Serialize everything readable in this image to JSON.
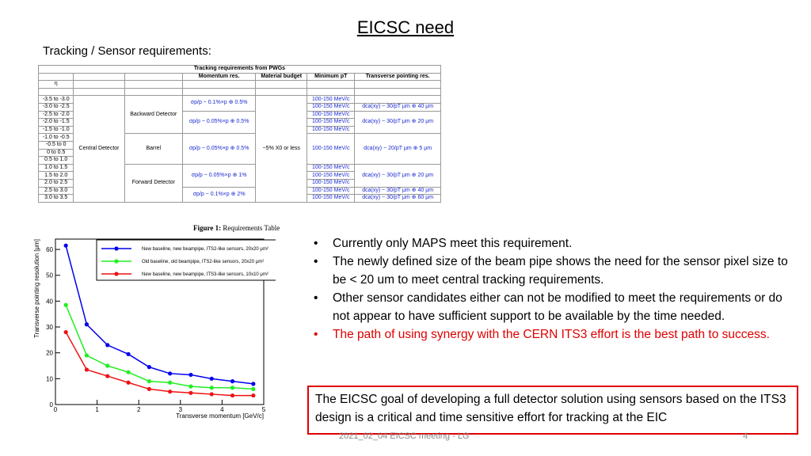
{
  "header": {
    "title": "EICSC need",
    "subtitle": "Tracking / Sensor requirements:"
  },
  "table": {
    "title": "Tracking requirements from PWGs",
    "headers": [
      "Momentum res.",
      "Material budget",
      "Minimum pT",
      "Transverse pointing res."
    ],
    "eta_label": "η",
    "eta": [
      "-3.5 to -3.0",
      "-3.0 to -2.5",
      "-2.5 to -2.0",
      "-2.0 to -1.5",
      "-1.5 to -1.0",
      "-1.0 to -0.5",
      "-0.5 to 0",
      "0 to 0.5",
      "0.5 to 1.0",
      "1.0 to 1.5",
      "1.5 to 2.0",
      "2.0 to 2.5",
      "2.5 to 3.0",
      "3.0 to 3.5"
    ],
    "region": "Central Detector",
    "detectors": [
      "Backward Detector",
      "Barrel",
      "Forward Detector"
    ],
    "momentum_res": [
      "σp/p ~ 0.1%×p ⊕ 0.5%",
      "σp/p ~ 0.05%×p ⊕ 0.5%",
      "σp/p ~ 0.05%×p ⊕ 0.5%",
      "σp/p ~ 0.05%×p ⊕ 1%",
      "σp/p ~ 0.1%×p ⊕ 2%"
    ],
    "material_budget": "~5% X0 or less",
    "min_pt": [
      "100-150 MeV/c",
      "100-150 MeV/c",
      "100-150 MeV/c",
      "100-150 MeV/c",
      "100-150 MeV/c",
      "100-150 MeV/c",
      "100-150 MeV/c",
      "100-150 MeV/c",
      "100-150 MeV/c",
      "100-150 MeV/c",
      "100-150 MeV/c"
    ],
    "pointing_res": [
      "dca(xy) ~ 30/pT μm ⊕ 40 μm",
      "dca(xy) ~ 30/pT μm ⊕ 20 μm",
      "dca(xy) ~ 20/pT μm ⊕ 5 μm",
      "dca(xy) ~ 30/pT μm ⊕ 20 μm",
      "dca(xy) ~ 30/pT μm ⊕ 40 μm",
      "dca(xy) ~ 30/pT μm ⊕ 60 μm"
    ]
  },
  "caption": {
    "label": "Figure 1:",
    "text": "Requirements Table"
  },
  "chart_data": {
    "type": "line",
    "x_label": "Transverse momentum [GeV/c]",
    "y_label": "Transverse pointing resolution [μm]",
    "x": [
      0.25,
      0.75,
      1.25,
      1.75,
      2.25,
      2.75,
      3.25,
      3.75,
      4.25,
      4.75
    ],
    "series": [
      {
        "name": "New baseline, new beampipe, ITS2-like sensors, 20x20 μm²",
        "color": "#0000ee",
        "values": [
          61.5,
          31,
          23,
          19.5,
          14.5,
          12,
          11.5,
          10,
          9,
          8
        ]
      },
      {
        "name": "Old baseline, old beampipe, ITS2-like sensors, 20x20 μm²",
        "color": "#22ee22",
        "values": [
          38.5,
          19,
          15,
          12.5,
          9,
          8.5,
          7,
          6.5,
          6.5,
          6
        ]
      },
      {
        "name": "New baseline, new beampipe, ITS3-like sensors, 10x10 μm²",
        "color": "#ee1111",
        "values": [
          28,
          13.5,
          11,
          8.5,
          6,
          5,
          4.5,
          4,
          3.5,
          3.5
        ]
      }
    ],
    "xlim": [
      0,
      5
    ],
    "ylim": [
      0,
      64
    ],
    "xticks": [
      0,
      1,
      2,
      3,
      4,
      5
    ],
    "yticks": [
      0,
      10,
      20,
      30,
      40,
      50,
      60
    ],
    "grid": false,
    "legend": "top-right"
  },
  "bullets": [
    {
      "text": "Currently only MAPS meet this requirement.",
      "color": "#000000"
    },
    {
      "text": "The newly defined size of the beam pipe shows the need for the sensor pixel size to be < 20 um to meet central tracking requirements.",
      "color": "#000000"
    },
    {
      "text": "Other sensor candidates either can not be modified to meet the requirements or do not appear to have sufficient support to be available by the time needed.",
      "color": "#000000"
    },
    {
      "text": "The path of using synergy with the CERN ITS3 effort is the best path to success.",
      "color": "#e00000"
    }
  ],
  "callout": "The EICSC goal of developing a full detector solution using sensors based on the ITS3 design is a critical and time sensitive effort for tracking at the EIC",
  "footer": {
    "text": "2021_02_04 EICSC meeting - LG",
    "page": "4"
  }
}
